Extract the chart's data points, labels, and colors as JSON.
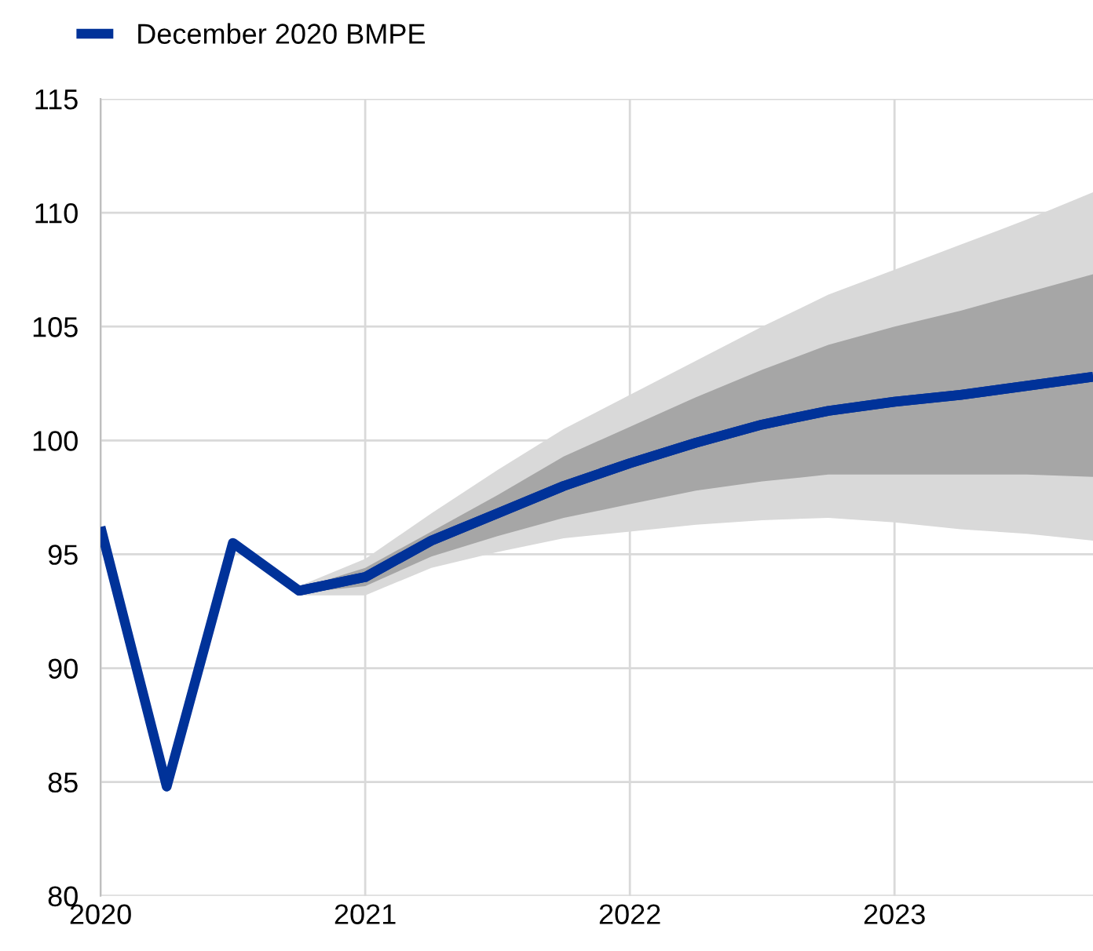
{
  "chart_data": {
    "type": "line",
    "xlim": [
      2020,
      2023.75
    ],
    "xticks": [
      2020,
      2021,
      2022,
      2023
    ],
    "ylim": [
      80,
      115
    ],
    "yticks": [
      80,
      85,
      90,
      95,
      100,
      105,
      110,
      115
    ],
    "grid": true,
    "legend": "top left",
    "series": [
      {
        "type": "line",
        "name": "December 2020 BMPE",
        "color": "#003299",
        "x": [
          2020,
          2020.25,
          2020.5,
          2020.75,
          2021,
          2021.25,
          2021.5,
          2021.75,
          2022,
          2022.25,
          2022.5,
          2022.75,
          2023,
          2023.25,
          2023.5,
          2023.75
        ],
        "values": [
          96.2,
          84.8,
          95.5,
          93.4,
          94.0,
          95.6,
          96.8,
          98.0,
          99.0,
          99.9,
          100.7,
          101.3,
          101.7,
          102.0,
          102.4,
          102.8
        ],
        "lower": [
          null,
          null,
          null,
          93.2,
          93.2,
          94.4,
          95.1,
          95.7,
          96.0,
          96.3,
          96.5,
          96.6,
          96.4,
          96.1,
          95.9,
          95.6
        ],
        "upper": [
          null,
          null,
          null,
          93.6,
          94.8,
          96.8,
          98.7,
          100.5,
          102.0,
          103.5,
          105.0,
          106.4,
          107.5,
          108.6,
          109.7,
          110.9
        ]
      },
      {
        "color": "#003299",
        "x": [
          2020.75,
          2021,
          2021.25,
          2021.5,
          2021.75,
          2022,
          2022.25,
          2022.5,
          2022.75,
          2023,
          2023.25,
          2023.5,
          2023.75
        ],
        "values": [
          93.4,
          94.0,
          95.6,
          96.8,
          98.0,
          99.0,
          99.9,
          100.7,
          101.3,
          101.7,
          102.0,
          102.4,
          102.8
        ],
        "lower": [
          93.3,
          93.6,
          94.9,
          95.8,
          96.6,
          97.2,
          97.8,
          98.2,
          98.5,
          98.5,
          98.5,
          98.5,
          98.4
        ],
        "upper": [
          93.5,
          94.4,
          96.0,
          97.6,
          99.3,
          100.6,
          101.9,
          103.1,
          104.2,
          105.0,
          105.7,
          106.5,
          107.3
        ]
      }
    ]
  }
}
